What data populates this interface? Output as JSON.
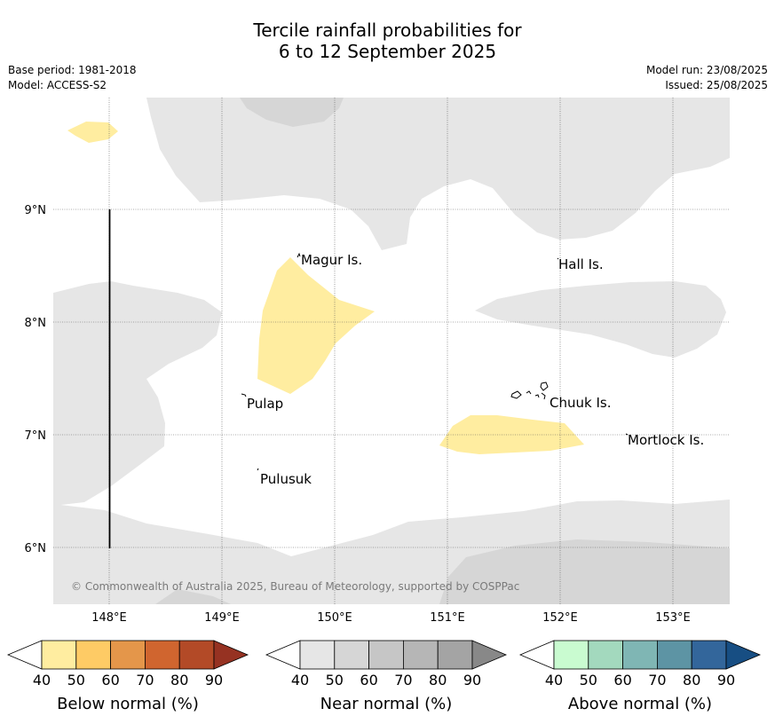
{
  "header": {
    "title_line1": "Tercile rainfall probabilities for",
    "title_line2": "6 to 12 September 2025",
    "base_period": "Base period: 1981-2018",
    "model": "Model: ACCESS-S2",
    "model_run": "Model run: 23/08/2025",
    "issued": "Issued: 25/08/2025"
  },
  "map": {
    "lat_ticks": [
      "9°N",
      "8°N",
      "7°N",
      "6°N"
    ],
    "lon_ticks": [
      "148°E",
      "149°E",
      "150°E",
      "151°E",
      "152°E",
      "153°E"
    ],
    "places": [
      "Magur Is.",
      "Hall Is.",
      "Pulap",
      "Chuuk Is.",
      "Mortlock Is.",
      "Pulusuk"
    ],
    "copyright": "© Commonwealth of Australia 2025, Bureau of Meteorology, supported by COSPPac"
  },
  "legend": {
    "below": {
      "label": "Below normal (%)",
      "ticks": [
        "40",
        "50",
        "60",
        "70",
        "80",
        "90"
      ],
      "colors": [
        "#ffeda0",
        "#fecb65",
        "#e4964a",
        "#d0652f",
        "#b34a27",
        "#963222"
      ]
    },
    "near": {
      "label": "Near normal (%)",
      "ticks": [
        "40",
        "50",
        "60",
        "70",
        "80",
        "90"
      ],
      "colors": [
        "#e6e6e6",
        "#d6d6d6",
        "#c6c6c6",
        "#b6b6b6",
        "#a4a4a4",
        "#888888"
      ]
    },
    "above": {
      "label": "Above normal (%)",
      "ticks": [
        "40",
        "50",
        "60",
        "70",
        "80",
        "90"
      ],
      "colors": [
        "#c9fbd0",
        "#a3d9be",
        "#7fb6b4",
        "#5d94a4",
        "#33669b",
        "#174e83"
      ]
    }
  }
}
